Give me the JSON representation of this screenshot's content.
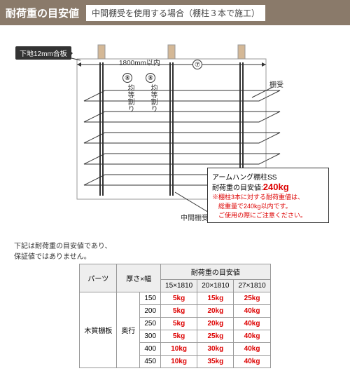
{
  "header": {
    "title": "耐荷重の目安値",
    "subtitle": "中間棚受を使用する場合（棚柱３本で施工）"
  },
  "diagram": {
    "callout_base": "下地12mm合板",
    "width_dim": "1800mm以内",
    "circles": [
      "⑦",
      "⑧",
      "⑧"
    ],
    "vert_labels": [
      "均等割り",
      "均等割り"
    ],
    "shelf_support": "棚受",
    "mid_support": "中間棚受",
    "box_l1": "アームハング棚柱SS",
    "box_l2_a": "耐荷重の目安値:",
    "box_l2_b": "240kg",
    "box_note1": "※棚柱3本に対する耐荷重値は、",
    "box_note2": "　総重量で240kg以内です。",
    "box_note3": "　ご使用の際にご注意ください。"
  },
  "table_note": "下記は耐荷重の目安値であり、\n保証値ではありません。",
  "table": {
    "hdr_main": "耐荷重の目安値",
    "hdr_parts": "パーツ",
    "hdr_thick": "厚さ×幅",
    "cols": [
      "15×1810",
      "20×1810",
      "27×1810"
    ],
    "part": "木質棚板",
    "depth_lbl": "奥行",
    "rows": [
      {
        "d": "150",
        "v": [
          "5kg",
          "15kg",
          "25kg"
        ]
      },
      {
        "d": "200",
        "v": [
          "5kg",
          "20kg",
          "40kg"
        ]
      },
      {
        "d": "250",
        "v": [
          "5kg",
          "20kg",
          "40kg"
        ]
      },
      {
        "d": "300",
        "v": [
          "5kg",
          "25kg",
          "40kg"
        ]
      },
      {
        "d": "400",
        "v": [
          "10kg",
          "30kg",
          "40kg"
        ]
      },
      {
        "d": "450",
        "v": [
          "10kg",
          "35kg",
          "40kg"
        ]
      }
    ]
  }
}
